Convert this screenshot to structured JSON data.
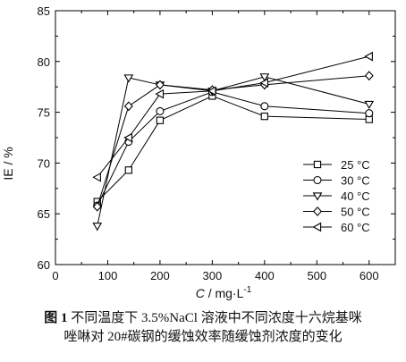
{
  "chart_data": {
    "type": "line",
    "title": "",
    "xlabel": "C / mg·L",
    "xlabel_sup": "-1",
    "ylabel": "IE / %",
    "xlim": [
      0,
      650
    ],
    "ylim": [
      60,
      85
    ],
    "xticks": [
      0,
      100,
      200,
      300,
      400,
      500,
      600
    ],
    "yticks": [
      60,
      65,
      70,
      75,
      80,
      85
    ],
    "grid": false,
    "legend_position": "bottom-right",
    "x": [
      80,
      140,
      200,
      300,
      400,
      600
    ],
    "series": [
      {
        "name": "25 °C",
        "marker": "square",
        "values": [
          66.2,
          69.3,
          74.2,
          76.6,
          74.6,
          74.3
        ]
      },
      {
        "name": "30 °C",
        "marker": "circle",
        "values": [
          65.8,
          72.1,
          75.1,
          77.0,
          75.6,
          74.9
        ]
      },
      {
        "name": "40 °C",
        "marker": "triangle-down",
        "values": [
          63.8,
          78.4,
          77.7,
          77.1,
          78.5,
          75.8
        ]
      },
      {
        "name": "50 °C",
        "marker": "diamond",
        "values": [
          65.7,
          75.6,
          77.7,
          77.2,
          77.7,
          78.6
        ]
      },
      {
        "name": "60 °C",
        "marker": "triangle-left",
        "values": [
          68.6,
          72.5,
          76.8,
          77.1,
          77.9,
          80.5
        ]
      }
    ]
  },
  "caption": {
    "fig_no": "图 1",
    "line1": "不同温度下 3.5%NaCl 溶液中不同浓度十六烷基咪",
    "line2": "唑啉对 20#碳钢的缓蚀效率随缓蚀剂浓度的变化"
  }
}
